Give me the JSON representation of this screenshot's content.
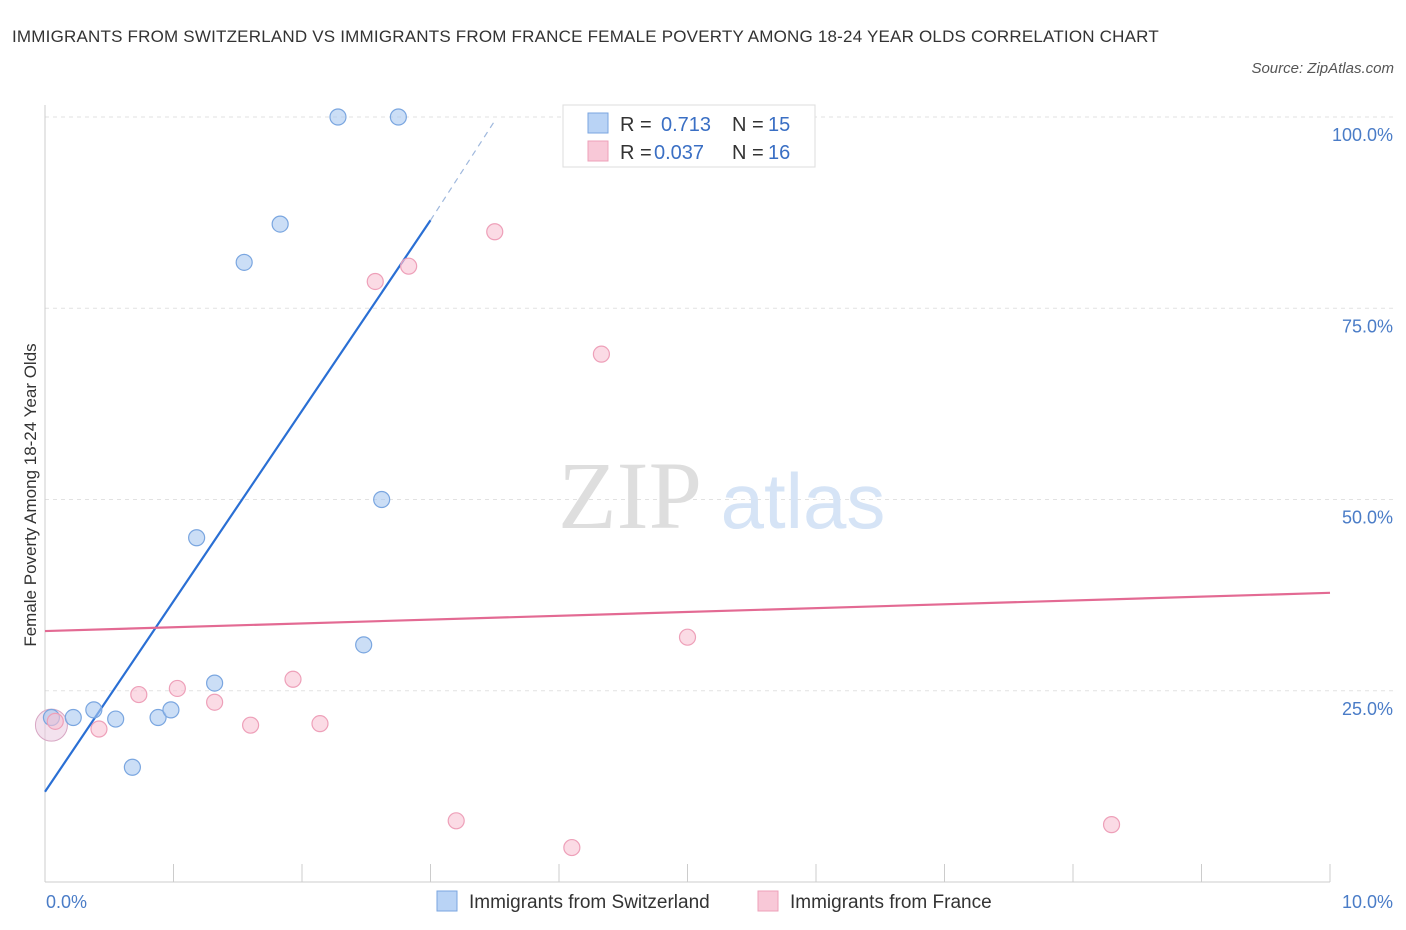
{
  "chart_data": {
    "type": "scatter",
    "title": "IMMIGRANTS FROM SWITZERLAND VS IMMIGRANTS FROM FRANCE FEMALE POVERTY AMONG 18-24 YEAR OLDS CORRELATION CHART",
    "source": "Source: ZipAtlas.com",
    "ylabel": "Female Poverty Among 18-24 Year Olds",
    "xlim": [
      0,
      10
    ],
    "ylim": [
      0,
      100
    ],
    "x_tick_labels": [
      "0.0%",
      "10.0%"
    ],
    "y_ticks": [
      25,
      50,
      75,
      100
    ],
    "y_tick_labels": [
      "25.0%",
      "50.0%",
      "75.0%",
      "100.0%"
    ],
    "watermark": {
      "zip": "ZIP",
      "atlas": "atlas"
    },
    "legend": {
      "r_label": "R =",
      "n_label": "N =",
      "entries": [
        {
          "r": "0.713",
          "n": "15"
        },
        {
          "r": "0.037",
          "n": "16"
        }
      ]
    },
    "series": [
      {
        "name": "Immigrants from Switzerland",
        "color": "#a9c8f0",
        "stroke": "#7aa6e0",
        "line_color": "#2a6fd4",
        "trend": {
          "x0": 0.0,
          "y0": 11.8,
          "x1": 3.0,
          "y1": 86.5,
          "dash_to_x": 3.5,
          "dash_to_y": 99.5
        },
        "points": [
          [
            0.05,
            21.5
          ],
          [
            0.22,
            21.5
          ],
          [
            0.38,
            22.5
          ],
          [
            0.55,
            21.3
          ],
          [
            0.68,
            15.0
          ],
          [
            0.88,
            21.5
          ],
          [
            0.98,
            22.5
          ],
          [
            1.18,
            45.0
          ],
          [
            1.32,
            26.0
          ],
          [
            1.55,
            81.0
          ],
          [
            1.83,
            86.0
          ],
          [
            2.28,
            100.0
          ],
          [
            2.48,
            31.0
          ],
          [
            2.62,
            50.0
          ],
          [
            2.75,
            100.0
          ]
        ]
      },
      {
        "name": "Immigrants from France",
        "color": "#f8c3d3",
        "stroke": "#eea0b9",
        "line_color": "#e36a93",
        "trend": {
          "x0": 0.0,
          "y0": 32.8,
          "x1": 10.0,
          "y1": 37.8
        },
        "points": [
          [
            0.08,
            21.0
          ],
          [
            0.42,
            20.0
          ],
          [
            0.73,
            24.5
          ],
          [
            1.03,
            25.3
          ],
          [
            1.32,
            23.5
          ],
          [
            1.6,
            20.5
          ],
          [
            1.93,
            26.5
          ],
          [
            2.14,
            20.7
          ],
          [
            2.57,
            78.5
          ],
          [
            2.83,
            80.5
          ],
          [
            3.2,
            8.0
          ],
          [
            3.5,
            85.0
          ],
          [
            4.1,
            4.5
          ],
          [
            4.33,
            69.0
          ],
          [
            5.0,
            32.0
          ],
          [
            8.3,
            7.5
          ]
        ]
      }
    ]
  }
}
